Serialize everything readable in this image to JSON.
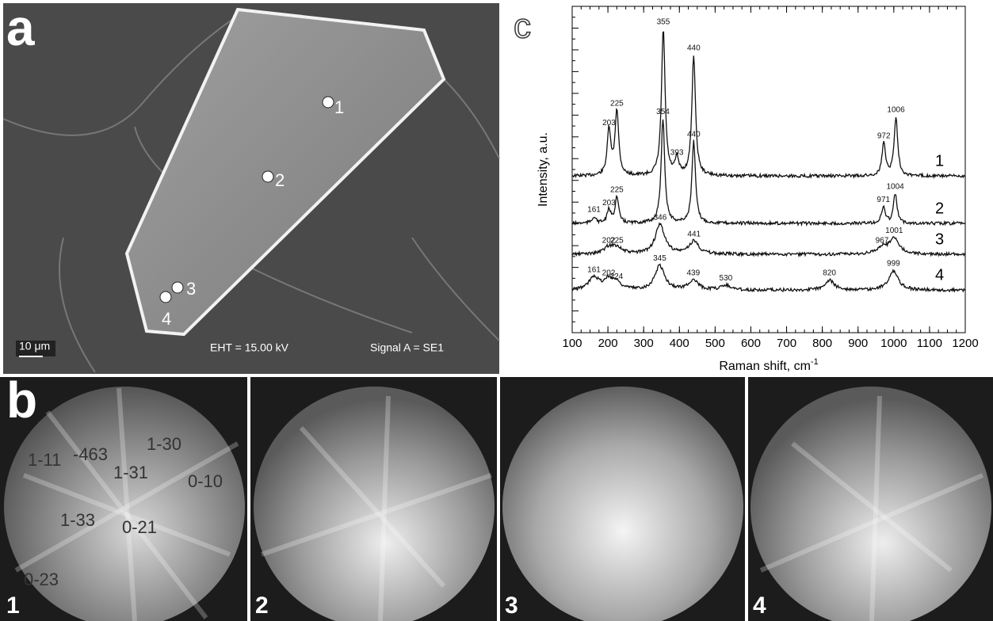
{
  "panel_a": {
    "label": "a",
    "points": [
      "1",
      "2",
      "3",
      "4"
    ],
    "scale_bar": "10 μm",
    "eht": "EHT = 15.00 kV",
    "signal": "Signal A = SE1"
  },
  "panel_b": {
    "label": "b",
    "images": [
      {
        "number": "1",
        "indices": [
          "1-11",
          "-463",
          "1-30",
          "1-31",
          "0-10",
          "1-33",
          "0-21",
          "0-23"
        ]
      },
      {
        "number": "2"
      },
      {
        "number": "3"
      },
      {
        "number": "4"
      }
    ]
  },
  "chart_data": {
    "type": "line",
    "panel_label": "c",
    "x_label": "Raman shift, cm",
    "x_label_sup": "-1",
    "y_label": "Intensity, a.u.",
    "xlim": [
      100,
      1200
    ],
    "xticks": [
      100,
      200,
      300,
      400,
      500,
      600,
      700,
      800,
      900,
      1000,
      1100,
      1200
    ],
    "ylim": [
      0,
      100
    ],
    "series": [
      {
        "name": "1",
        "color": "#111111",
        "baseline": 48,
        "peaks": [
          203,
          225,
          355,
          393,
          440,
          972,
          1006
        ],
        "heights": [
          14,
          20,
          45,
          5,
          37,
          10,
          18
        ]
      },
      {
        "name": "2",
        "color": "#111111",
        "baseline": 33.5,
        "peaks": [
          161,
          203,
          225,
          354,
          440,
          971,
          1004
        ],
        "heights": [
          2,
          4,
          8,
          32,
          25,
          5,
          9
        ]
      },
      {
        "name": "3",
        "color": "#111111",
        "baseline": 24,
        "peaks": [
          202,
          225,
          346,
          441,
          967,
          1001
        ],
        "heights": [
          2,
          2,
          9,
          4,
          2,
          5
        ]
      },
      {
        "name": "4",
        "color": "#111111",
        "baseline": 13,
        "peaks": [
          161,
          202,
          224,
          345,
          439,
          530,
          820,
          999
        ],
        "heights": [
          4,
          3,
          2,
          7.5,
          3,
          1.5,
          3,
          6
        ]
      }
    ]
  }
}
